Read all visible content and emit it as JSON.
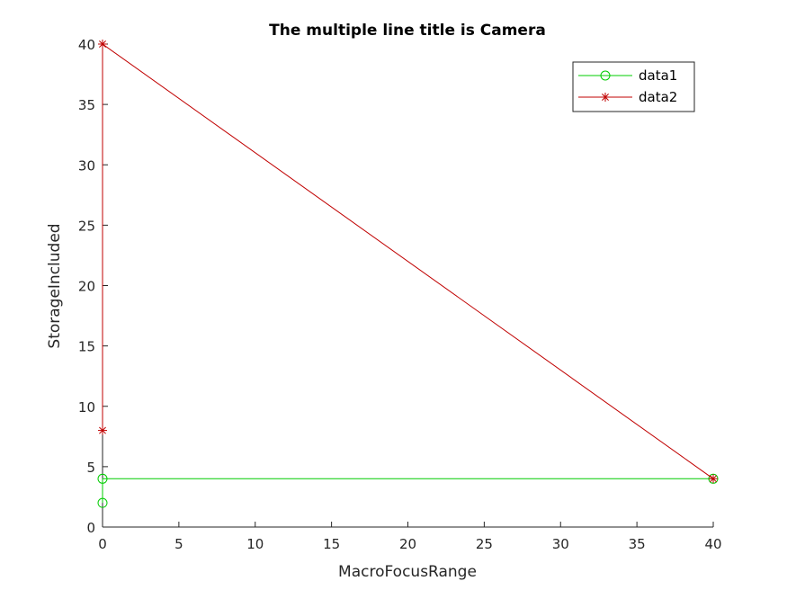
{
  "chart_data": {
    "type": "line",
    "title": "The multiple line title is Camera",
    "xlabel": "MacroFocusRange",
    "ylabel": "StorageIncluded",
    "xlim": [
      0,
      40
    ],
    "ylim": [
      0,
      40
    ],
    "xticks": [
      "0",
      "5",
      "10",
      "15",
      "20",
      "25",
      "30",
      "35",
      "40"
    ],
    "yticks": [
      "0",
      "5",
      "10",
      "15",
      "20",
      "25",
      "30",
      "35",
      "40"
    ],
    "grid": false,
    "legend_position": "top-right",
    "series": [
      {
        "name": "data1",
        "color": "#00cc00",
        "marker": "circle",
        "points": [
          [
            0,
            2
          ],
          [
            0,
            4
          ],
          [
            40,
            4
          ]
        ]
      },
      {
        "name": "data2",
        "color": "#c00000",
        "marker": "asterisk",
        "points": [
          [
            0,
            8
          ],
          [
            0,
            40
          ],
          [
            40,
            4
          ]
        ]
      }
    ]
  }
}
